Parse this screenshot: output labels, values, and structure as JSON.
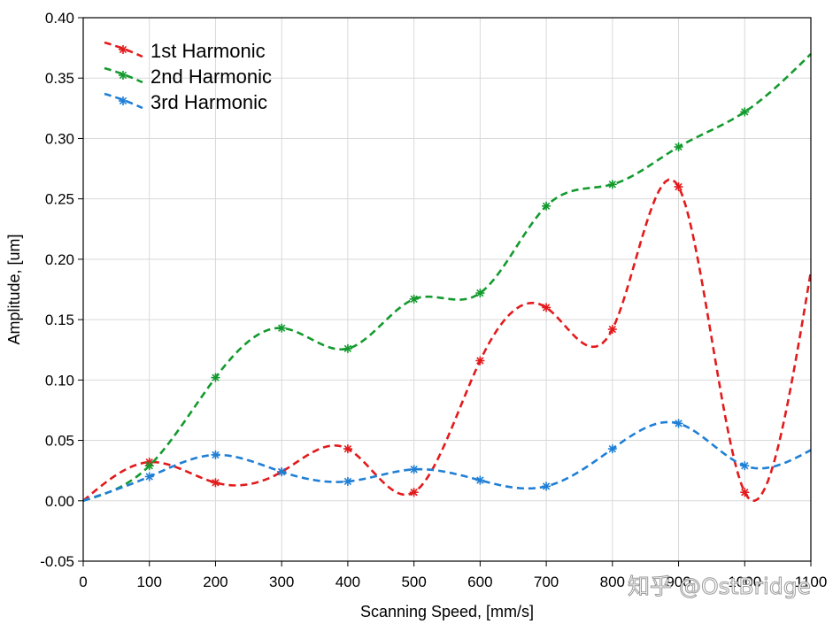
{
  "chart_data": {
    "type": "line",
    "title": "",
    "xlabel": "Scanning Speed, [mm/s]",
    "ylabel": "Amplitude, [um]",
    "xlim": [
      0,
      1100
    ],
    "ylim": [
      -0.05,
      0.4
    ],
    "x_ticks": [
      "0",
      "100",
      "200",
      "300",
      "400",
      "500",
      "600",
      "700",
      "800",
      "900",
      "1000",
      "1100"
    ],
    "y_ticks": [
      "-0.05",
      "0.00",
      "0.05",
      "0.10",
      "0.15",
      "0.20",
      "0.25",
      "0.30",
      "0.35",
      "0.40"
    ],
    "grid": true,
    "legend_position": "top-left",
    "series": [
      {
        "name": "1st  Harmonic",
        "color": "#e31a1c",
        "x": [
          0,
          100,
          200,
          300,
          400,
          500,
          600,
          700,
          800,
          900,
          1000
        ],
        "y": [
          0.0,
          0.032,
          0.015,
          0.024,
          0.043,
          0.007,
          0.116,
          0.16,
          0.142,
          0.26,
          0.007
        ],
        "trail": [
          1100,
          0.19
        ]
      },
      {
        "name": "2nd  Harmonic",
        "color": "#139a2e",
        "x": [
          0,
          100,
          200,
          300,
          400,
          500,
          600,
          700,
          800,
          900,
          1000
        ],
        "y": [
          0.0,
          0.029,
          0.102,
          0.143,
          0.126,
          0.167,
          0.172,
          0.244,
          0.262,
          0.293,
          0.322
        ],
        "trail": [
          1100,
          0.37
        ]
      },
      {
        "name": "3rd  Harmonic",
        "color": "#1f7fd6",
        "x": [
          0,
          100,
          200,
          300,
          400,
          500,
          600,
          700,
          800,
          900,
          1000
        ],
        "y": [
          0.0,
          0.02,
          0.038,
          0.024,
          0.016,
          0.026,
          0.017,
          0.012,
          0.043,
          0.064,
          0.029
        ],
        "trail": [
          1100,
          0.042
        ]
      }
    ]
  },
  "watermark": "知乎 @OstBridge"
}
